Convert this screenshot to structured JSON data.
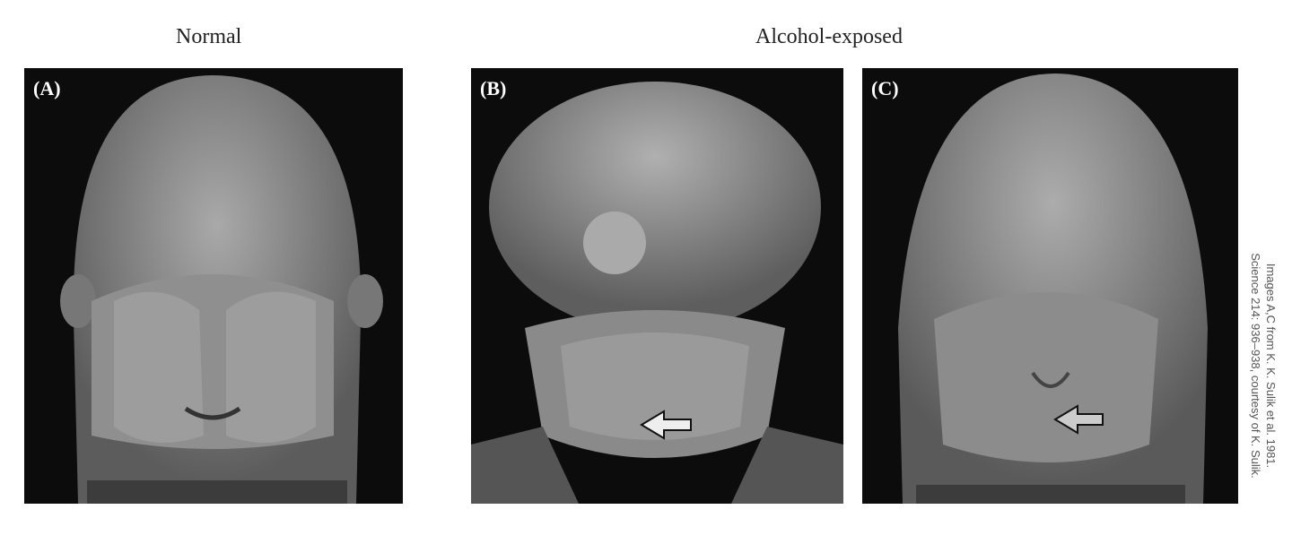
{
  "headings": {
    "normal": "Normal",
    "exposed": "Alcohol-exposed"
  },
  "panels": [
    {
      "label": "(A)",
      "group": "Normal"
    },
    {
      "label": "(B)",
      "group": "Alcohol-exposed"
    },
    {
      "label": "(C)",
      "group": "Alcohol-exposed"
    }
  ],
  "credit": {
    "line1": "Images A,C from K. K. Sulik et al. 1981.",
    "line2": "Science 214: 936–938, courtesy of K. Sulik."
  }
}
